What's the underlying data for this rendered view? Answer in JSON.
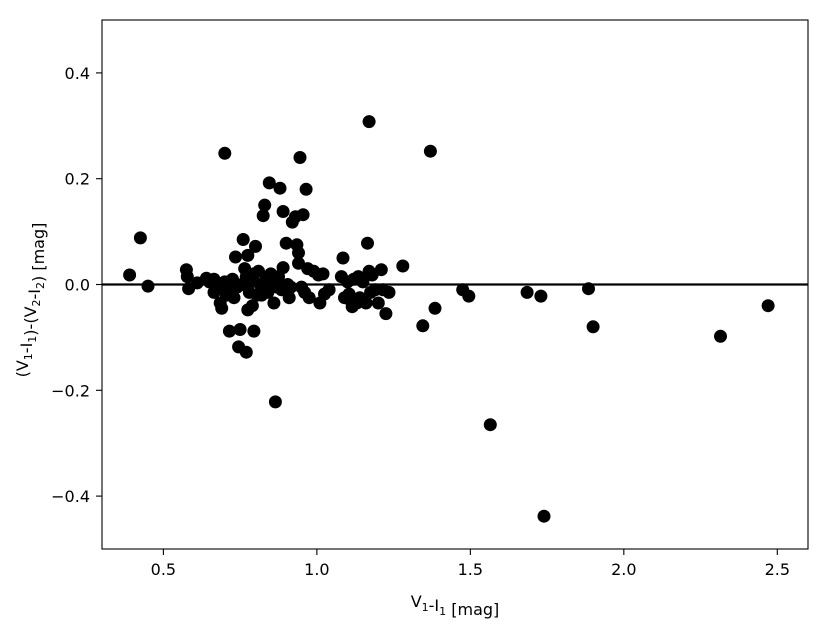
{
  "chart_data": {
    "type": "scatter",
    "xlabel": "V1-I1 [mag]",
    "ylabel": "(V1-I1)-(V2-I2) [mag]",
    "xlim": [
      0.3,
      2.6
    ],
    "ylim": [
      -0.5,
      0.5
    ],
    "x_ticks": [
      0.5,
      1.0,
      1.5,
      2.0,
      2.5
    ],
    "y_ticks": [
      -0.4,
      -0.2,
      0.0,
      0.2,
      0.4
    ],
    "x_tick_labels": [
      "0.5",
      "1.0",
      "1.5",
      "2.0",
      "2.5"
    ],
    "y_tick_labels": [
      "−0.4",
      "−0.2",
      "0.0",
      "0.2",
      "0.4"
    ],
    "reference_line_y": 0.0,
    "grid": false,
    "marker_color": "#000000",
    "points": [
      [
        0.39,
        0.018
      ],
      [
        0.425,
        0.088
      ],
      [
        0.45,
        -0.003
      ],
      [
        0.575,
        0.028
      ],
      [
        0.578,
        0.015
      ],
      [
        0.582,
        -0.008
      ],
      [
        0.61,
        0.003
      ],
      [
        0.64,
        0.012
      ],
      [
        0.65,
        0.005
      ],
      [
        0.665,
        0.01
      ],
      [
        0.665,
        -0.015
      ],
      [
        0.68,
        -0.005
      ],
      [
        0.685,
        -0.035
      ],
      [
        0.69,
        -0.045
      ],
      [
        0.7,
        0.248
      ],
      [
        0.7,
        0.005
      ],
      [
        0.705,
        -0.02
      ],
      [
        0.715,
        -0.088
      ],
      [
        0.72,
        -0.01
      ],
      [
        0.725,
        0.01
      ],
      [
        0.73,
        -0.025
      ],
      [
        0.735,
        0.052
      ],
      [
        0.74,
        -0.005
      ],
      [
        0.745,
        -0.118
      ],
      [
        0.75,
        -0.085
      ],
      [
        0.755,
        0.0
      ],
      [
        0.76,
        0.085
      ],
      [
        0.765,
        0.03
      ],
      [
        0.77,
        -0.128
      ],
      [
        0.77,
        0.015
      ],
      [
        0.775,
        0.055
      ],
      [
        0.775,
        -0.048
      ],
      [
        0.78,
        -0.015
      ],
      [
        0.785,
        0.005
      ],
      [
        0.79,
        -0.04
      ],
      [
        0.795,
        0.02
      ],
      [
        0.795,
        -0.088
      ],
      [
        0.8,
        0.072
      ],
      [
        0.805,
        -0.02
      ],
      [
        0.81,
        0.025
      ],
      [
        0.815,
        0.0
      ],
      [
        0.82,
        -0.02
      ],
      [
        0.825,
        0.13
      ],
      [
        0.83,
        0.15
      ],
      [
        0.835,
        0.01
      ],
      [
        0.84,
        -0.015
      ],
      [
        0.845,
        0.192
      ],
      [
        0.85,
        0.02
      ],
      [
        0.855,
        0.0
      ],
      [
        0.86,
        -0.035
      ],
      [
        0.865,
        -0.222
      ],
      [
        0.87,
        -0.005
      ],
      [
        0.875,
        0.015
      ],
      [
        0.88,
        0.182
      ],
      [
        0.885,
        -0.01
      ],
      [
        0.89,
        0.138
      ],
      [
        0.89,
        0.032
      ],
      [
        0.9,
        0.078
      ],
      [
        0.905,
        0.0
      ],
      [
        0.91,
        -0.025
      ],
      [
        0.915,
        -0.005
      ],
      [
        0.92,
        0.118
      ],
      [
        0.93,
        0.128
      ],
      [
        0.935,
        0.075
      ],
      [
        0.94,
        0.04
      ],
      [
        0.94,
        0.06
      ],
      [
        0.945,
        0.24
      ],
      [
        0.95,
        -0.005
      ],
      [
        0.955,
        0.132
      ],
      [
        0.96,
        -0.015
      ],
      [
        0.965,
        0.18
      ],
      [
        0.97,
        0.03
      ],
      [
        0.975,
        -0.025
      ],
      [
        0.99,
        0.025
      ],
      [
        1.005,
        0.018
      ],
      [
        1.01,
        -0.035
      ],
      [
        1.02,
        0.02
      ],
      [
        1.025,
        -0.018
      ],
      [
        1.04,
        -0.01
      ],
      [
        1.08,
        0.015
      ],
      [
        1.085,
        0.05
      ],
      [
        1.09,
        -0.025
      ],
      [
        1.1,
        0.005
      ],
      [
        1.105,
        -0.018
      ],
      [
        1.11,
        -0.03
      ],
      [
        1.115,
        -0.042
      ],
      [
        1.12,
        0.01
      ],
      [
        1.13,
        -0.035
      ],
      [
        1.135,
        0.015
      ],
      [
        1.14,
        -0.025
      ],
      [
        1.15,
        0.005
      ],
      [
        1.16,
        -0.035
      ],
      [
        1.165,
        0.078
      ],
      [
        1.17,
        0.025
      ],
      [
        1.17,
        0.308
      ],
      [
        1.175,
        -0.015
      ],
      [
        1.18,
        0.018
      ],
      [
        1.19,
        -0.01
      ],
      [
        1.2,
        -0.035
      ],
      [
        1.21,
        0.028
      ],
      [
        1.215,
        -0.01
      ],
      [
        1.225,
        -0.055
      ],
      [
        1.235,
        -0.015
      ],
      [
        1.28,
        0.035
      ],
      [
        1.345,
        -0.078
      ],
      [
        1.37,
        0.252
      ],
      [
        1.385,
        -0.045
      ],
      [
        1.475,
        -0.01
      ],
      [
        1.495,
        -0.022
      ],
      [
        1.565,
        -0.265
      ],
      [
        1.685,
        -0.015
      ],
      [
        1.73,
        -0.022
      ],
      [
        1.74,
        -0.438
      ],
      [
        1.885,
        -0.008
      ],
      [
        1.9,
        -0.08
      ],
      [
        2.315,
        -0.098
      ],
      [
        2.47,
        -0.04
      ]
    ]
  }
}
